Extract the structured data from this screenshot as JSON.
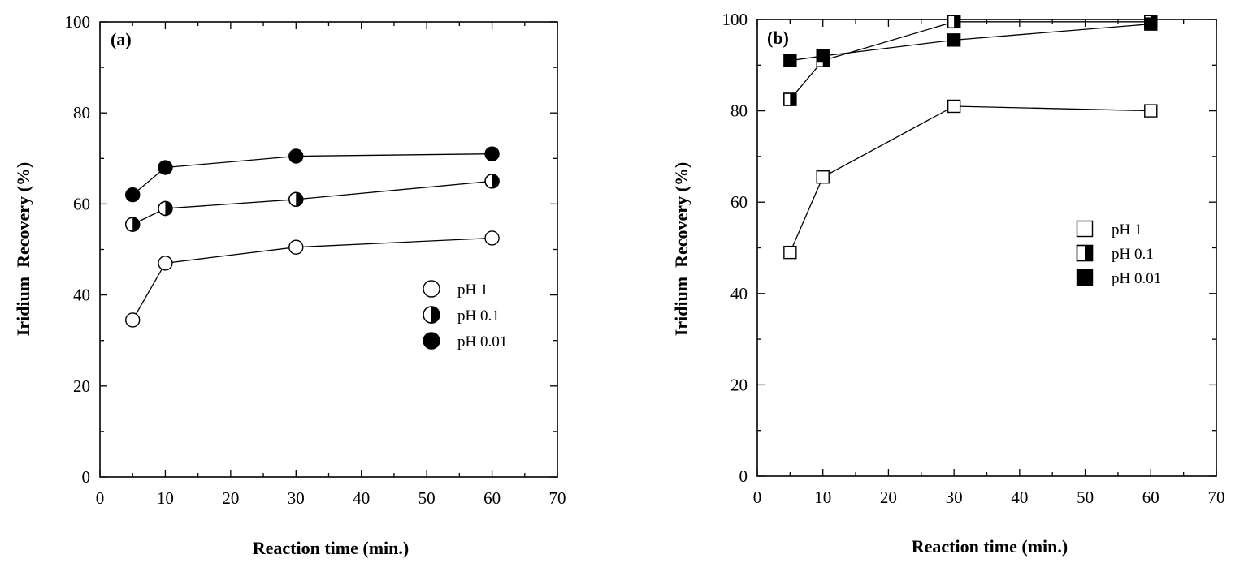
{
  "chart_data": [
    {
      "type": "line",
      "panel_label": "(a)",
      "xlabel": "Reaction time (min.)",
      "ylabel": "Iridium  Recovery (%)",
      "xlim": [
        0,
        70
      ],
      "ylim": [
        0,
        100
      ],
      "x_ticks": [
        "0",
        "10",
        "20",
        "30",
        "40",
        "50",
        "60",
        "70"
      ],
      "y_ticks": [
        "0",
        "20",
        "40",
        "60",
        "80",
        "100"
      ],
      "marker": "circle",
      "legend_position": "right-middle",
      "series": [
        {
          "name": "pH 1",
          "fill": "open",
          "x": [
            5,
            10,
            30,
            60
          ],
          "y": [
            34.5,
            47,
            50.5,
            52.5
          ]
        },
        {
          "name": "pH 0.1",
          "fill": "half",
          "x": [
            5,
            10,
            30,
            60
          ],
          "y": [
            55.5,
            59,
            61,
            65
          ]
        },
        {
          "name": "pH 0.01",
          "fill": "filled",
          "x": [
            5,
            10,
            30,
            60
          ],
          "y": [
            62,
            68,
            70.5,
            71
          ]
        }
      ]
    },
    {
      "type": "line",
      "panel_label": "(b)",
      "xlabel": "Reaction time (min.)",
      "ylabel": "Iridium  Recovery (%)",
      "xlim": [
        0,
        70
      ],
      "ylim": [
        0,
        100
      ],
      "x_ticks": [
        "0",
        "10",
        "20",
        "30",
        "40",
        "50",
        "60",
        "70"
      ],
      "y_ticks": [
        "0",
        "20",
        "40",
        "60",
        "80",
        "100"
      ],
      "marker": "square",
      "legend_position": "right-middle",
      "series": [
        {
          "name": "pH 1",
          "fill": "open",
          "x": [
            5,
            10,
            30,
            60
          ],
          "y": [
            49,
            65.5,
            81,
            80
          ]
        },
        {
          "name": "pH 0.1",
          "fill": "half",
          "x": [
            5,
            10,
            30,
            60
          ],
          "y": [
            82.5,
            91,
            99.5,
            99.5
          ]
        },
        {
          "name": "pH 0.01",
          "fill": "filled",
          "x": [
            5,
            10,
            30,
            60
          ],
          "y": [
            91,
            92,
            95.5,
            99
          ]
        }
      ]
    }
  ]
}
